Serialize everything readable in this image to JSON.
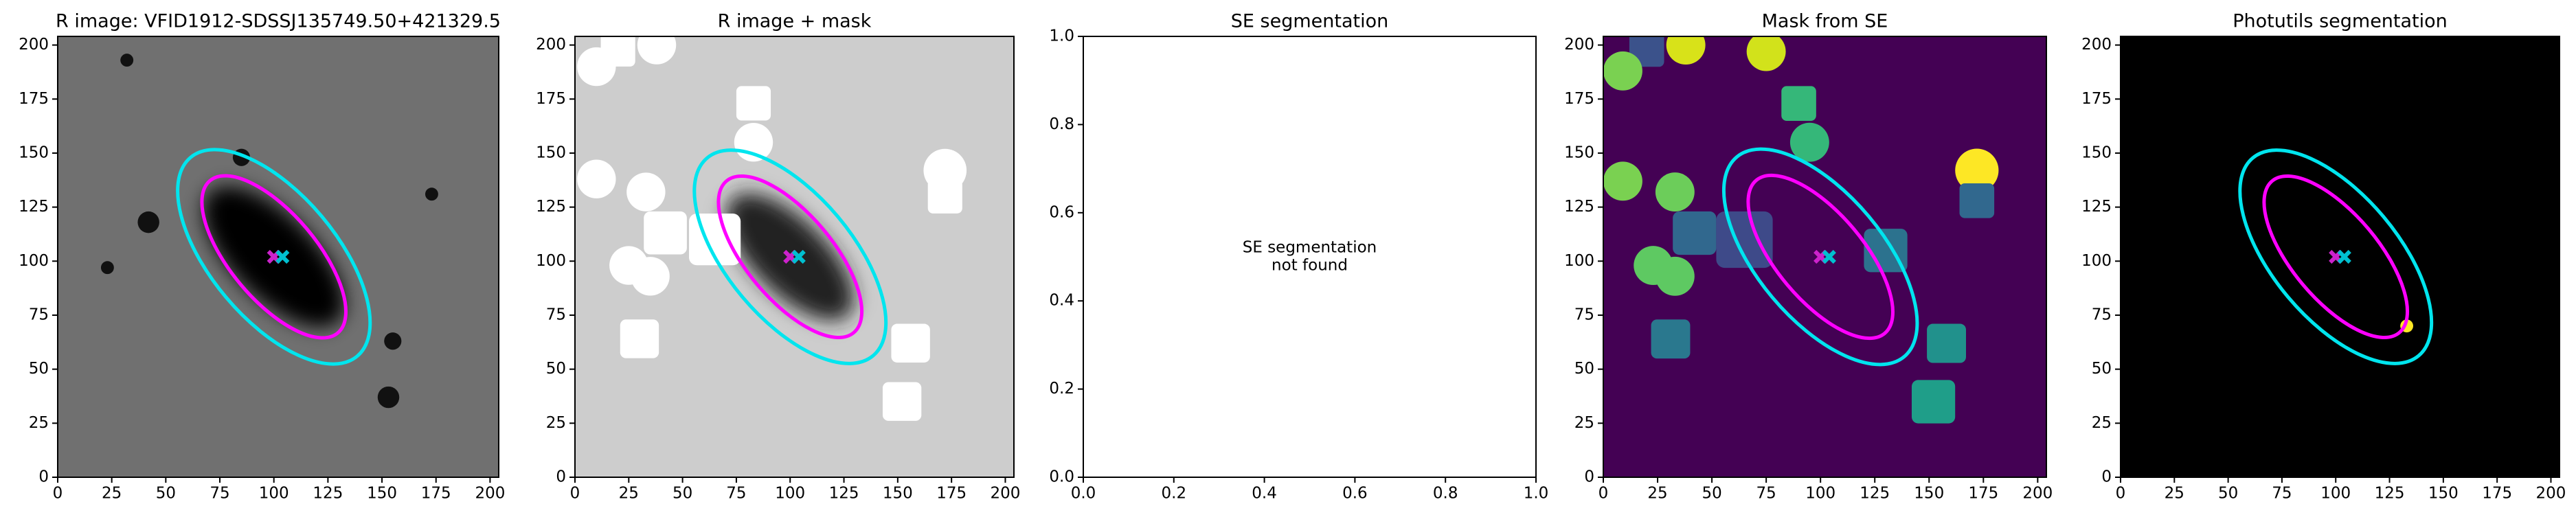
{
  "chart_data": [
    {
      "type": "image",
      "title": "R image: VFID1912-SDSSJ135749.50+421329.5",
      "background": "#707070",
      "xlim": [
        0,
        204
      ],
      "ylim": [
        0,
        204
      ],
      "xticks": [
        0,
        25,
        50,
        75,
        100,
        125,
        150,
        175,
        200
      ],
      "yticks": [
        0,
        25,
        50,
        75,
        100,
        125,
        150,
        175,
        200
      ],
      "galaxy": {
        "center": [
          100,
          102
        ],
        "a": 42,
        "b": 19,
        "angle": -45,
        "color": "#000000"
      },
      "regions": [
        {
          "shape": "circle",
          "x": 42,
          "y": 118,
          "r": 5,
          "color": "#111111"
        },
        {
          "shape": "circle",
          "x": 155,
          "y": 63,
          "r": 4,
          "color": "#111111"
        },
        {
          "shape": "circle",
          "x": 153,
          "y": 37,
          "r": 5,
          "color": "#111111"
        },
        {
          "shape": "circle",
          "x": 173,
          "y": 131,
          "r": 3,
          "color": "#111111"
        },
        {
          "shape": "circle",
          "x": 85,
          "y": 148,
          "r": 4,
          "color": "#111111"
        },
        {
          "shape": "circle",
          "x": 23,
          "y": 97,
          "r": 3,
          "color": "#111111"
        },
        {
          "shape": "circle",
          "x": 32,
          "y": 193,
          "r": 3,
          "color": "#111111"
        }
      ],
      "ellipses": [
        {
          "center": [
            100,
            102
          ],
          "a": 46,
          "b": 20,
          "angle": -50,
          "color": "#ff00ff"
        },
        {
          "center": [
            100,
            102
          ],
          "a": 60,
          "b": 29,
          "angle": -50,
          "color": "#00e5ee"
        }
      ],
      "markers": [
        {
          "x": 100,
          "y": 102,
          "color": "#cc22cc"
        },
        {
          "x": 104,
          "y": 102,
          "color": "#00c0d0"
        }
      ]
    },
    {
      "type": "image",
      "title": "R image + mask",
      "background": "#cdcdcd",
      "xlim": [
        0,
        204
      ],
      "ylim": [
        0,
        204
      ],
      "xticks": [
        0,
        25,
        50,
        75,
        100,
        125,
        150,
        175,
        200
      ],
      "yticks": [
        0,
        25,
        50,
        75,
        100,
        125,
        150,
        175,
        200
      ],
      "galaxy": {
        "center": [
          100,
          102
        ],
        "a": 38,
        "b": 17,
        "angle": -45,
        "color": "#222222"
      },
      "regions": [
        {
          "shape": "circle",
          "x": 10,
          "y": 190,
          "r": 9,
          "color": "#ffffff"
        },
        {
          "shape": "circle",
          "x": 38,
          "y": 200,
          "r": 9,
          "color": "#ffffff"
        },
        {
          "shape": "square",
          "x": 20,
          "y": 198,
          "r": 8,
          "color": "#ffffff"
        },
        {
          "shape": "square",
          "x": 83,
          "y": 173,
          "r": 8,
          "color": "#ffffff"
        },
        {
          "shape": "circle",
          "x": 83,
          "y": 155,
          "r": 9,
          "color": "#ffffff"
        },
        {
          "shape": "circle",
          "x": 10,
          "y": 138,
          "r": 9,
          "color": "#ffffff"
        },
        {
          "shape": "circle",
          "x": 33,
          "y": 132,
          "r": 9,
          "color": "#ffffff"
        },
        {
          "shape": "square",
          "x": 42,
          "y": 113,
          "r": 10,
          "color": "#ffffff"
        },
        {
          "shape": "circle",
          "x": 25,
          "y": 98,
          "r": 9,
          "color": "#ffffff"
        },
        {
          "shape": "circle",
          "x": 35,
          "y": 93,
          "r": 9,
          "color": "#ffffff"
        },
        {
          "shape": "square",
          "x": 65,
          "y": 110,
          "r": 12,
          "color": "#ffffff"
        },
        {
          "shape": "circle",
          "x": 172,
          "y": 142,
          "r": 10,
          "color": "#ffffff"
        },
        {
          "shape": "square",
          "x": 172,
          "y": 130,
          "r": 8,
          "color": "#ffffff"
        },
        {
          "shape": "square",
          "x": 30,
          "y": 64,
          "r": 9,
          "color": "#ffffff"
        },
        {
          "shape": "square",
          "x": 156,
          "y": 62,
          "r": 9,
          "color": "#ffffff"
        },
        {
          "shape": "square",
          "x": 152,
          "y": 35,
          "r": 9,
          "color": "#ffffff"
        }
      ],
      "ellipses": [
        {
          "center": [
            100,
            102
          ],
          "a": 46,
          "b": 20,
          "angle": -50,
          "color": "#ff00ff"
        },
        {
          "center": [
            100,
            102
          ],
          "a": 60,
          "b": 29,
          "angle": -50,
          "color": "#00e5ee"
        }
      ],
      "markers": [
        {
          "x": 100,
          "y": 102,
          "color": "#cc22cc"
        },
        {
          "x": 104,
          "y": 102,
          "color": "#00c0d0"
        }
      ]
    },
    {
      "type": "empty",
      "title": "SE segmentation",
      "background": "#ffffff",
      "xlim": [
        0,
        1
      ],
      "ylim": [
        0,
        1
      ],
      "xticks": [
        {
          "value": 0,
          "label": "0.0"
        },
        {
          "value": 0.2,
          "label": "0.2"
        },
        {
          "value": 0.4,
          "label": "0.4"
        },
        {
          "value": 0.6,
          "label": "0.6"
        },
        {
          "value": 0.8,
          "label": "0.8"
        },
        {
          "value": 1,
          "label": "1.0"
        }
      ],
      "yticks": [
        {
          "value": 0,
          "label": "0.0"
        },
        {
          "value": 0.2,
          "label": "0.2"
        },
        {
          "value": 0.4,
          "label": "0.4"
        },
        {
          "value": 0.6,
          "label": "0.6"
        },
        {
          "value": 0.8,
          "label": "0.8"
        },
        {
          "value": 1,
          "label": "1.0"
        }
      ],
      "annotation": [
        "SE segmentation",
        "not found"
      ]
    },
    {
      "type": "image",
      "title": "Mask from SE",
      "background": "#440154",
      "xlim": [
        0,
        204
      ],
      "ylim": [
        0,
        204
      ],
      "xticks": [
        0,
        25,
        50,
        75,
        100,
        125,
        150,
        175,
        200
      ],
      "yticks": [
        0,
        25,
        50,
        75,
        100,
        125,
        150,
        175,
        200
      ],
      "regions": [
        {
          "shape": "square",
          "x": 20,
          "y": 198,
          "r": 8,
          "color": "#3b528b"
        },
        {
          "shape": "circle",
          "x": 9,
          "y": 188,
          "r": 9,
          "color": "#7ad151"
        },
        {
          "shape": "circle",
          "x": 38,
          "y": 200,
          "r": 9,
          "color": "#d8e219"
        },
        {
          "shape": "circle",
          "x": 75,
          "y": 197,
          "r": 9,
          "color": "#d2e21b"
        },
        {
          "shape": "square",
          "x": 90,
          "y": 173,
          "r": 8,
          "color": "#35b779"
        },
        {
          "shape": "circle",
          "x": 95,
          "y": 155,
          "r": 9,
          "color": "#35b779"
        },
        {
          "shape": "circle",
          "x": 9,
          "y": 137,
          "r": 9,
          "color": "#7ad151"
        },
        {
          "shape": "circle",
          "x": 33,
          "y": 132,
          "r": 9,
          "color": "#6ccd5a"
        },
        {
          "shape": "square",
          "x": 42,
          "y": 113,
          "r": 10,
          "color": "#31688e"
        },
        {
          "shape": "circle",
          "x": 23,
          "y": 98,
          "r": 9,
          "color": "#5ec962"
        },
        {
          "shape": "circle",
          "x": 33,
          "y": 93,
          "r": 9,
          "color": "#5ec962"
        },
        {
          "shape": "square",
          "x": 65,
          "y": 110,
          "r": 13,
          "color": "#3e4a89"
        },
        {
          "shape": "square",
          "x": 130,
          "y": 105,
          "r": 10,
          "color": "#2c728e"
        },
        {
          "shape": "circle",
          "x": 172,
          "y": 142,
          "r": 10,
          "color": "#fde725"
        },
        {
          "shape": "square",
          "x": 172,
          "y": 128,
          "r": 8,
          "color": "#31688e"
        },
        {
          "shape": "square",
          "x": 31,
          "y": 64,
          "r": 9,
          "color": "#2a788e"
        },
        {
          "shape": "square",
          "x": 158,
          "y": 62,
          "r": 9,
          "color": "#21918c"
        },
        {
          "shape": "square",
          "x": 152,
          "y": 35,
          "r": 10,
          "color": "#1f9e89"
        }
      ],
      "ellipses": [
        {
          "center": [
            100,
            102
          ],
          "a": 46,
          "b": 20,
          "angle": -50,
          "color": "#ff00ff"
        },
        {
          "center": [
            100,
            102
          ],
          "a": 60,
          "b": 29,
          "angle": -50,
          "color": "#00e5ee"
        }
      ],
      "markers": [
        {
          "x": 100,
          "y": 102,
          "color": "#cc22cc"
        },
        {
          "x": 104,
          "y": 102,
          "color": "#00c0d0"
        }
      ]
    },
    {
      "type": "image",
      "title": "Photutils segmentation",
      "background": "#000000",
      "xlim": [
        0,
        204
      ],
      "ylim": [
        0,
        204
      ],
      "xticks": [
        0,
        25,
        50,
        75,
        100,
        125,
        150,
        175,
        200
      ],
      "yticks": [
        0,
        25,
        50,
        75,
        100,
        125,
        150,
        175,
        200
      ],
      "regions": [
        {
          "shape": "circle",
          "x": 133,
          "y": 70,
          "r": 3,
          "color": "#fde725"
        }
      ],
      "ellipses": [
        {
          "center": [
            100,
            102
          ],
          "a": 46,
          "b": 20,
          "angle": -50,
          "color": "#ff00ff"
        },
        {
          "center": [
            100,
            102
          ],
          "a": 60,
          "b": 29,
          "angle": -50,
          "color": "#00e5ee"
        }
      ],
      "markers": [
        {
          "x": 100,
          "y": 102,
          "color": "#cc22cc"
        },
        {
          "x": 104,
          "y": 102,
          "color": "#00c0d0"
        }
      ]
    }
  ]
}
